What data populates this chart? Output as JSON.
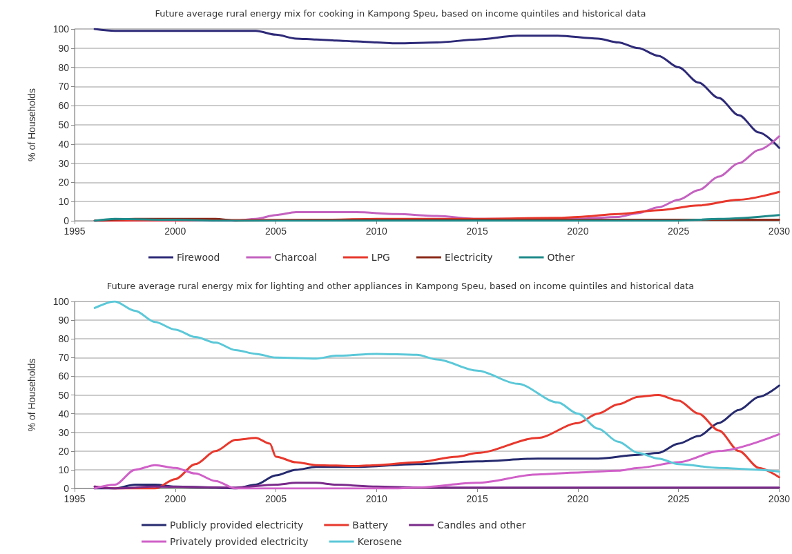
{
  "chart_data": [
    {
      "type": "line",
      "title": "Future average rural energy mix for cooking in Kampong Speu, based on income quintiles and historical data",
      "ylabel": "% of Households",
      "xlim": [
        1995,
        2030
      ],
      "xticks": [
        1995,
        2000,
        2005,
        2010,
        2015,
        2020,
        2025,
        2030
      ],
      "ylim": [
        0,
        100
      ],
      "yticks": [
        0,
        10,
        20,
        30,
        40,
        50,
        60,
        70,
        80,
        90,
        100
      ],
      "grid": "y",
      "legend": "bottom",
      "marker": "none",
      "line_style": "solid",
      "series": [
        {
          "name": "Firewood",
          "color": "#2e2a78",
          "x": [
            1996,
            1997,
            2000,
            2004,
            2005,
            2006,
            2007,
            2008,
            2009,
            2010,
            2011,
            2013,
            2015,
            2017,
            2019,
            2021,
            2022,
            2023,
            2024,
            2025,
            2026,
            2027,
            2028,
            2029,
            2030
          ],
          "values": [
            100,
            99,
            99,
            99,
            97,
            95,
            94.5,
            94,
            93.5,
            93,
            92.5,
            93,
            94.5,
            96.5,
            96.5,
            95,
            93,
            90,
            86,
            80,
            72,
            64,
            55,
            46,
            38
          ]
        },
        {
          "name": "Charcoal",
          "color": "#c462c0",
          "x": [
            1996,
            2003,
            2004,
            2005,
            2006,
            2009,
            2011,
            2013,
            2015,
            2020,
            2022,
            2023,
            2024,
            2025,
            2026,
            2027,
            2028,
            2029,
            2030
          ],
          "values": [
            0,
            0,
            1,
            3,
            4.5,
            4.5,
            3.5,
            2.5,
            1,
            1,
            2,
            4,
            7,
            11,
            16,
            23,
            30,
            37,
            44
          ]
        },
        {
          "name": "LPG",
          "color": "#e8382d",
          "x": [
            1996,
            2007,
            2010,
            2015,
            2019,
            2020,
            2022,
            2024,
            2026,
            2028,
            2030
          ],
          "values": [
            0,
            0.5,
            1,
            1,
            1.5,
            2,
            3.5,
            5.5,
            8,
            11,
            15
          ]
        },
        {
          "name": "Electricity",
          "color": "#8b2a1a",
          "x": [
            1996,
            1998,
            2002,
            2003,
            2010,
            2030
          ],
          "values": [
            0,
            1,
            1,
            0,
            0.5,
            0.5
          ]
        },
        {
          "name": "Other",
          "color": "#1f8a8a",
          "x": [
            1996,
            1997,
            2000,
            2002,
            2025,
            2027,
            2030
          ],
          "values": [
            0,
            1,
            0.5,
            0,
            0,
            1,
            3
          ]
        }
      ]
    },
    {
      "type": "line",
      "title": "Future average rural energy mix for lighting and other appliances in Kampong Speu, based on income quintiles and historical data",
      "ylabel": "% of Households",
      "xlim": [
        1995,
        2030
      ],
      "xticks": [
        1995,
        2000,
        2005,
        2010,
        2015,
        2020,
        2025,
        2030
      ],
      "ylim": [
        0,
        100
      ],
      "yticks": [
        0,
        10,
        20,
        30,
        40,
        50,
        60,
        70,
        80,
        90,
        100
      ],
      "grid": "y",
      "legend": "bottom",
      "marker": "none",
      "line_style": "solid",
      "series": [
        {
          "name": "Publicly provided electricity",
          "color": "#262a6e",
          "x": [
            1996,
            1997,
            1998,
            1999,
            2000,
            2002,
            2003,
            2004,
            2005,
            2006,
            2007,
            2009,
            2012,
            2015,
            2018,
            2021,
            2023,
            2024,
            2025,
            2026,
            2027,
            2028,
            2029,
            2030
          ],
          "values": [
            0,
            0,
            2,
            2,
            1,
            0.5,
            0,
            2,
            7,
            10,
            11.5,
            11.5,
            13,
            14.5,
            16,
            16,
            18,
            19,
            24,
            28,
            35,
            42,
            49,
            55
          ]
        },
        {
          "name": "Battery",
          "color": "#e8382d",
          "x": [
            1996,
            1997,
            1999,
            2000,
            2001,
            2002,
            2003,
            2004,
            2004.7,
            2005,
            2006,
            2007,
            2009,
            2010,
            2012,
            2014,
            2015,
            2018,
            2020,
            2021,
            2022,
            2023,
            2024,
            2025,
            2026,
            2027,
            2028,
            2029,
            2030
          ],
          "values": [
            1,
            0,
            0,
            5,
            13,
            20,
            26,
            27,
            24,
            17,
            14,
            12.5,
            12,
            12.5,
            14,
            17,
            19,
            27,
            35,
            40,
            45,
            49,
            50,
            47,
            40,
            31,
            20,
            11,
            6
          ]
        },
        {
          "name": "Candles and other",
          "color": "#7a2a8a",
          "x": [
            1996,
            1997,
            1999,
            2003,
            2005,
            2006,
            2007,
            2008,
            2010,
            2012,
            2030
          ],
          "values": [
            1,
            0,
            1,
            0.5,
            2,
            3,
            3,
            2,
            1,
            0.5,
            0.5
          ]
        },
        {
          "name": "Privately provided electricity",
          "color": "#d060c8",
          "x": [
            1996,
            1997,
            1998,
            1999,
            2000,
            2001,
            2002,
            2003,
            2011,
            2012,
            2015,
            2018,
            2020,
            2022,
            2023,
            2025,
            2027,
            2030
          ],
          "values": [
            0,
            2,
            10,
            12.5,
            11,
            8,
            4,
            0,
            0,
            0.5,
            3,
            7.5,
            8.5,
            9.5,
            11,
            14,
            20,
            29
          ]
        },
        {
          "name": "Kerosene",
          "color": "#5bc8d8",
          "x": [
            1996,
            1997,
            1998,
            1999,
            2000,
            2001,
            2002,
            2003,
            2004,
            2005,
            2007,
            2008,
            2010,
            2012,
            2013,
            2015,
            2017,
            2019,
            2020,
            2021,
            2022,
            2023,
            2024,
            2025,
            2027,
            2029,
            2030
          ],
          "values": [
            96.5,
            100,
            95,
            89,
            85,
            81,
            78,
            74,
            72,
            70,
            69.5,
            71,
            72,
            71.5,
            69,
            63,
            56,
            46,
            40,
            32,
            25,
            19,
            16,
            13,
            11,
            10,
            9
          ]
        }
      ]
    }
  ]
}
